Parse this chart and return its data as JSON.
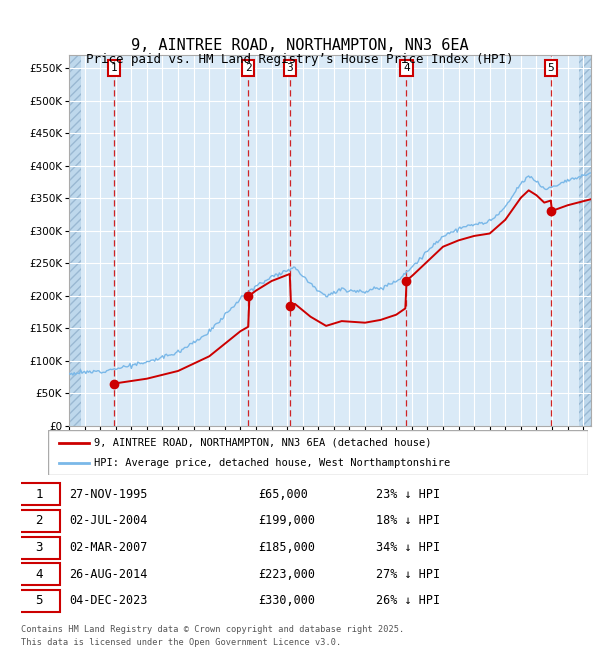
{
  "title": "9, AINTREE ROAD, NORTHAMPTON, NN3 6EA",
  "subtitle": "Price paid vs. HM Land Registry’s House Price Index (HPI)",
  "hpi_label": "HPI: Average price, detached house, West Northamptonshire",
  "property_label": "9, AINTREE ROAD, NORTHAMPTON, NN3 6EA (detached house)",
  "footer1": "Contains HM Land Registry data © Crown copyright and database right 2025.",
  "footer2": "This data is licensed under the Open Government Licence v3.0.",
  "transactions": [
    {
      "num": 1,
      "date": "27-NOV-1995",
      "price": 65000,
      "pct": "23%",
      "year": 1995.9
    },
    {
      "num": 2,
      "date": "02-JUL-2004",
      "price": 199000,
      "pct": "18%",
      "year": 2004.5
    },
    {
      "num": 3,
      "date": "02-MAR-2007",
      "price": 185000,
      "pct": "34%",
      "year": 2007.17
    },
    {
      "num": 4,
      "date": "26-AUG-2014",
      "price": 223000,
      "pct": "27%",
      "year": 2014.65
    },
    {
      "num": 5,
      "date": "04-DEC-2023",
      "price": 330000,
      "pct": "26%",
      "year": 2023.92
    }
  ],
  "ylim": [
    0,
    570000
  ],
  "xlim_start": 1993.0,
  "xlim_end": 2026.5,
  "background_color": "#daeaf7",
  "grid_color": "#ffffff",
  "hpi_color": "#7ab8e8",
  "property_color": "#cc0000",
  "vline_color": "#cc0000",
  "label_box_color": "#cc0000",
  "hatch_left_end": 1993.75,
  "hatch_right_start": 2025.75
}
